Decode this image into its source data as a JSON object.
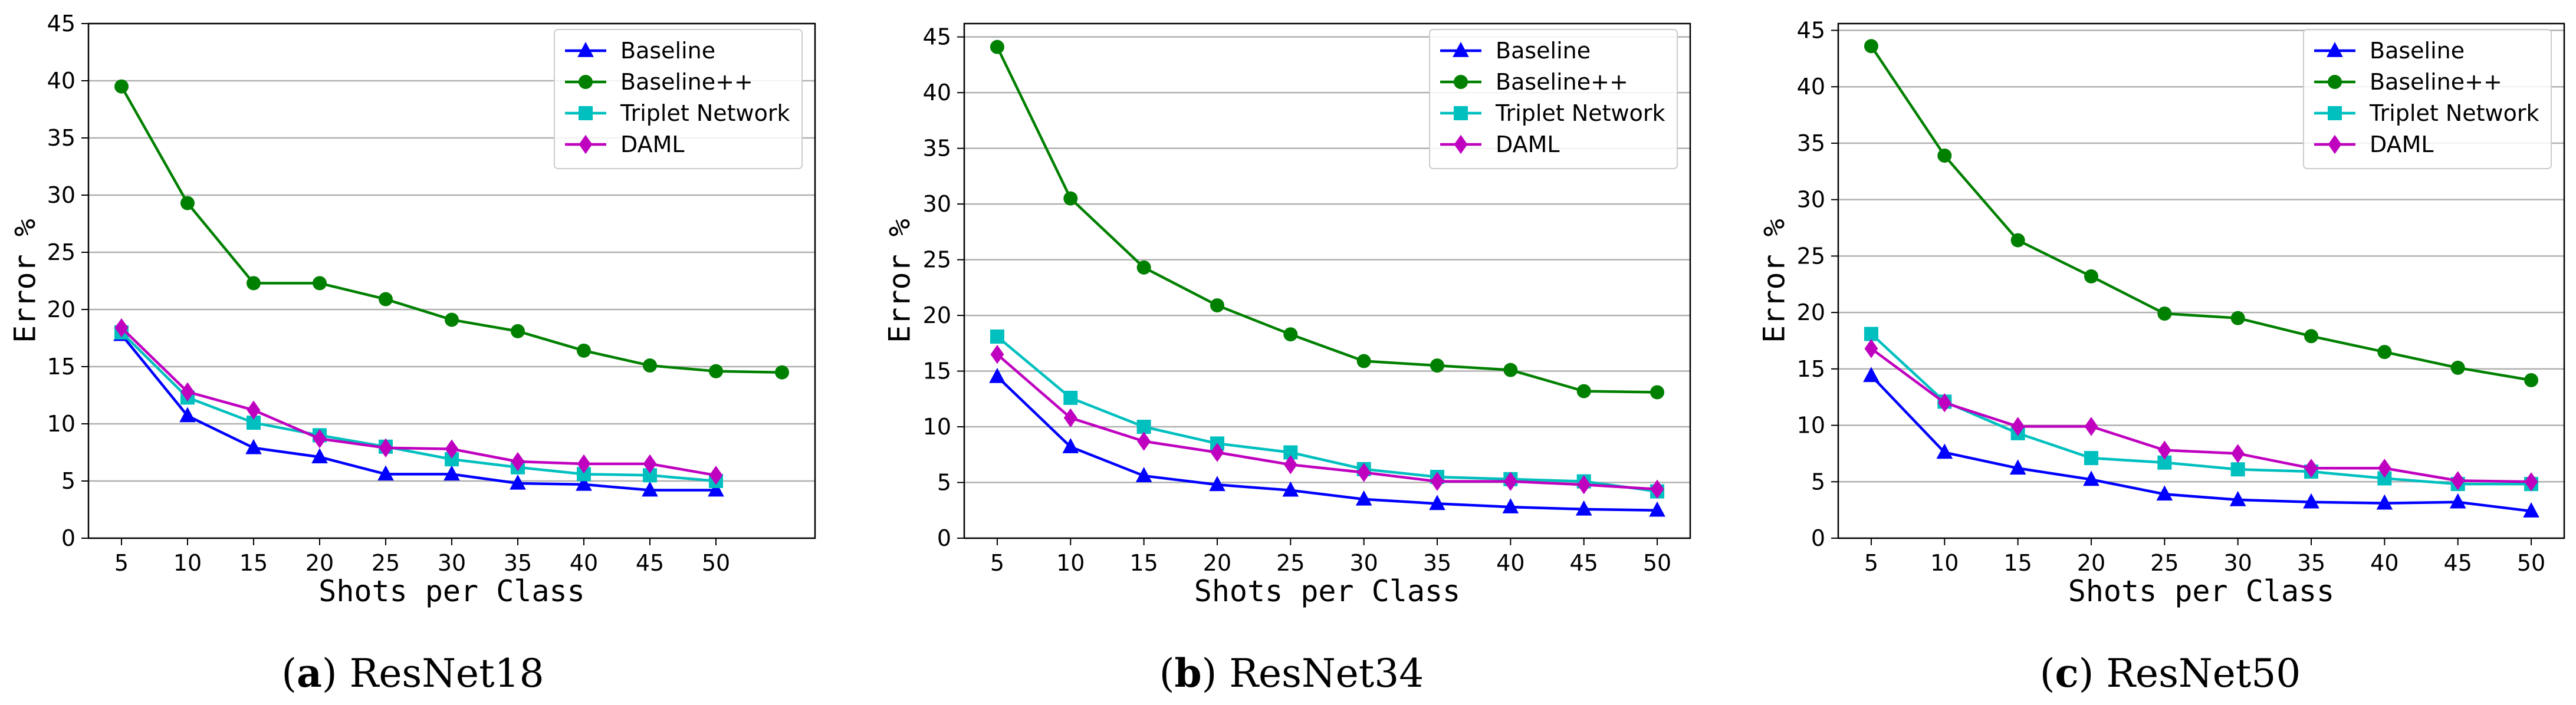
{
  "chart_data": [
    {
      "type": "line",
      "caption_letter": "a",
      "caption_model": "ResNet18",
      "xlabel": "Shots per Class",
      "ylabel": "Error %",
      "x": [
        5,
        10,
        15,
        20,
        25,
        30,
        35,
        40,
        45,
        50
      ],
      "xlim": [
        2.5,
        57.5
      ],
      "ylim": [
        0,
        45
      ],
      "yticks": [
        0,
        5,
        10,
        15,
        20,
        25,
        30,
        35,
        40,
        45
      ],
      "grid": "horizontal",
      "legend_position": "top-right",
      "series": [
        {
          "name": "Baseline",
          "color": "#0000ff",
          "marker": "triangle",
          "x": [
            5,
            10,
            15,
            20,
            25,
            30,
            35,
            40,
            45,
            50
          ],
          "values": [
            17.8,
            10.7,
            7.9,
            7.1,
            5.6,
            5.6,
            4.8,
            4.7,
            4.2,
            4.2
          ]
        },
        {
          "name": "Baseline++",
          "color": "#008000",
          "marker": "circle",
          "x": [
            5,
            10,
            15,
            20,
            25,
            30,
            35,
            40,
            45,
            50,
            55
          ],
          "values": [
            39.5,
            29.3,
            22.3,
            22.3,
            20.9,
            19.1,
            18.1,
            16.4,
            15.1,
            14.6,
            14.5
          ]
        },
        {
          "name": "Triplet Network",
          "color": "#00bfbf",
          "marker": "square",
          "x": [
            5,
            10,
            15,
            20,
            25,
            30,
            35,
            40,
            45,
            50
          ],
          "values": [
            18.0,
            12.3,
            10.1,
            9.0,
            8.0,
            6.9,
            6.2,
            5.6,
            5.5,
            5.0
          ]
        },
        {
          "name": "DAML",
          "color": "#bf00bf",
          "marker": "diamond",
          "x": [
            5,
            10,
            15,
            20,
            25,
            30,
            35,
            40,
            45,
            50
          ],
          "values": [
            18.4,
            12.8,
            11.2,
            8.7,
            7.9,
            7.8,
            6.7,
            6.5,
            6.5,
            5.5
          ]
        }
      ]
    },
    {
      "type": "line",
      "caption_letter": "b",
      "caption_model": "ResNet34",
      "xlabel": "Shots per Class",
      "ylabel": "Error %",
      "x": [
        5,
        10,
        15,
        20,
        25,
        30,
        35,
        40,
        45,
        50
      ],
      "xlim": [
        2.75,
        52.25
      ],
      "ylim": [
        0,
        46.2
      ],
      "yticks": [
        0,
        5,
        10,
        15,
        20,
        25,
        30,
        35,
        40,
        45
      ],
      "grid": "horizontal",
      "legend_position": "top-right",
      "series": [
        {
          "name": "Baseline",
          "color": "#0000ff",
          "marker": "triangle",
          "x": [
            5,
            10,
            15,
            20,
            25,
            30,
            35,
            40,
            45,
            50
          ],
          "values": [
            14.5,
            8.2,
            5.6,
            4.8,
            4.3,
            3.5,
            3.1,
            2.8,
            2.6,
            2.5
          ]
        },
        {
          "name": "Baseline++",
          "color": "#008000",
          "marker": "circle",
          "x": [
            5,
            10,
            15,
            20,
            25,
            30,
            35,
            40,
            45,
            50
          ],
          "values": [
            44.1,
            30.5,
            24.3,
            20.9,
            18.3,
            15.9,
            15.5,
            15.1,
            13.2,
            13.1
          ]
        },
        {
          "name": "Triplet Network",
          "color": "#00bfbf",
          "marker": "square",
          "x": [
            5,
            10,
            15,
            20,
            25,
            30,
            35,
            40,
            45,
            50
          ],
          "values": [
            18.1,
            12.6,
            10.0,
            8.5,
            7.7,
            6.2,
            5.5,
            5.3,
            5.1,
            4.2
          ]
        },
        {
          "name": "DAML",
          "color": "#bf00bf",
          "marker": "diamond",
          "x": [
            5,
            10,
            15,
            20,
            25,
            30,
            35,
            40,
            45,
            50
          ],
          "values": [
            16.5,
            10.8,
            8.7,
            7.7,
            6.6,
            5.9,
            5.1,
            5.1,
            4.8,
            4.4
          ]
        }
      ]
    },
    {
      "type": "line",
      "caption_letter": "c",
      "caption_model": "ResNet50",
      "xlabel": "Shots per Class",
      "ylabel": "Error %",
      "x": [
        5,
        10,
        15,
        20,
        25,
        30,
        35,
        40,
        45,
        50
      ],
      "xlim": [
        2.75,
        52.25
      ],
      "ylim": [
        0,
        45.6
      ],
      "yticks": [
        0,
        5,
        10,
        15,
        20,
        25,
        30,
        35,
        40,
        45
      ],
      "grid": "horizontal",
      "legend_position": "top-right",
      "series": [
        {
          "name": "Baseline",
          "color": "#0000ff",
          "marker": "triangle",
          "x": [
            5,
            10,
            15,
            20,
            25,
            30,
            35,
            40,
            45,
            50
          ],
          "values": [
            14.4,
            7.6,
            6.2,
            5.2,
            3.9,
            3.4,
            3.2,
            3.1,
            3.2,
            2.4
          ]
        },
        {
          "name": "Baseline++",
          "color": "#008000",
          "marker": "circle",
          "x": [
            5,
            10,
            15,
            20,
            25,
            30,
            35,
            40,
            45,
            50
          ],
          "values": [
            43.6,
            33.9,
            26.4,
            23.2,
            19.9,
            19.5,
            17.9,
            16.5,
            15.1,
            14.0
          ]
        },
        {
          "name": "Triplet Network",
          "color": "#00bfbf",
          "marker": "square",
          "x": [
            5,
            10,
            15,
            20,
            25,
            30,
            35,
            40,
            45,
            50
          ],
          "values": [
            18.1,
            12.1,
            9.3,
            7.1,
            6.7,
            6.1,
            5.9,
            5.3,
            4.8,
            4.8
          ]
        },
        {
          "name": "DAML",
          "color": "#bf00bf",
          "marker": "diamond",
          "x": [
            5,
            10,
            15,
            20,
            25,
            30,
            35,
            40,
            45,
            50
          ],
          "values": [
            16.8,
            12.0,
            9.9,
            9.9,
            7.8,
            7.5,
            6.2,
            6.2,
            5.1,
            5.0
          ]
        }
      ]
    }
  ]
}
